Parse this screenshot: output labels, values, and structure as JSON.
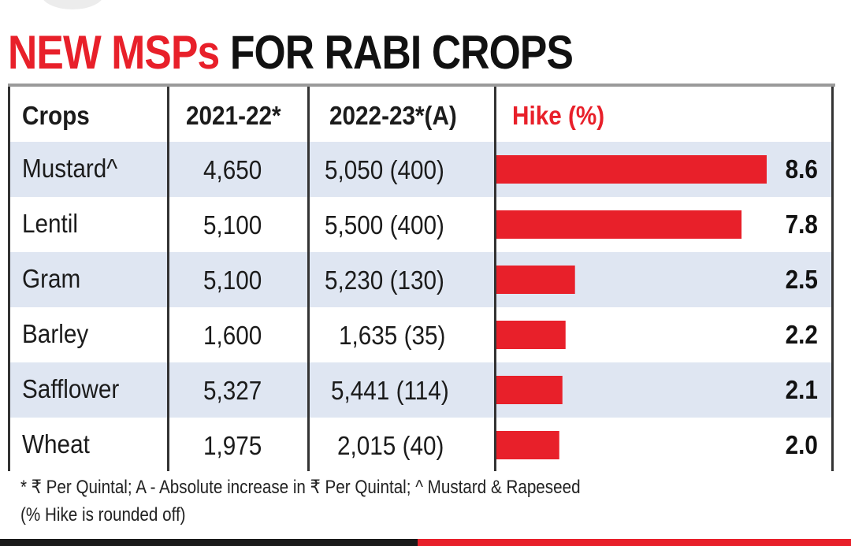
{
  "title": {
    "red": "NEW MSPs",
    "black": "FOR RABI CROPS"
  },
  "table": {
    "headers": [
      "Crops",
      "2021-22*",
      "2022-23*(A)",
      "Hike (%)"
    ],
    "rows": [
      {
        "crop": "Mustard^",
        "msp_2021_22": "4,650",
        "msp_2022_23": "5,050 (400)",
        "hike_label": "8.6"
      },
      {
        "crop": "Lentil",
        "msp_2021_22": "5,100",
        "msp_2022_23": "5,500 (400)",
        "hike_label": "7.8"
      },
      {
        "crop": "Gram",
        "msp_2021_22": "5,100",
        "msp_2022_23": "5,230 (130)",
        "hike_label": "2.5"
      },
      {
        "crop": "Barley",
        "msp_2021_22": "1,600",
        "msp_2022_23": "1,635 (35)",
        "hike_label": "2.2"
      },
      {
        "crop": "Safflower",
        "msp_2021_22": "5,327",
        "msp_2022_23": "5,441 (114)",
        "hike_label": "2.1"
      },
      {
        "crop": "Wheat",
        "msp_2021_22": "1,975",
        "msp_2022_23": "2,015 (40)",
        "hike_label": "2.0"
      }
    ]
  },
  "footnote": {
    "line1": "* ₹ Per Quintal; A - Absolute increase in ₹ Per Quintal; ^ Mustard & Rapeseed",
    "line2": "(% Hike is rounded off)"
  },
  "chart_data": {
    "type": "bar",
    "orientation": "horizontal",
    "categories": [
      "Mustard^",
      "Lentil",
      "Gram",
      "Barley",
      "Safflower",
      "Wheat"
    ],
    "values": [
      8.6,
      7.8,
      2.5,
      2.2,
      2.1,
      2.0
    ],
    "title": "NEW MSPs FOR RABI CROPS",
    "series": [
      {
        "name": "2021-22*",
        "values": [
          4650,
          5100,
          5100,
          1600,
          5327,
          1975
        ]
      },
      {
        "name": "2022-23*(A)",
        "values": [
          5050,
          5500,
          5230,
          1635,
          5441,
          2015
        ]
      },
      {
        "name": "(A)",
        "values": [
          400,
          400,
          130,
          35,
          114,
          40
        ]
      },
      {
        "name": "Hike (%)",
        "values": [
          8.6,
          7.8,
          2.5,
          2.2,
          2.1,
          2.0
        ]
      }
    ],
    "xlim": [
      0,
      8.6
    ],
    "grid": false,
    "colors": {
      "bar": "#e8202a",
      "row_shade": "#dfe6f2",
      "title_red": "#e8202a"
    }
  }
}
